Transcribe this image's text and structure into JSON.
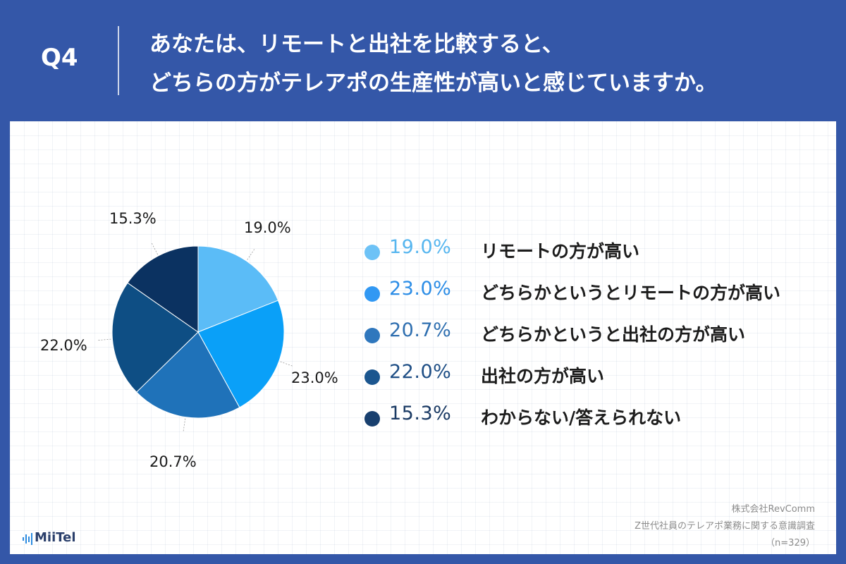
{
  "question": {
    "number": "Q4",
    "line1": "あなたは、リモートと出社を比較すると、",
    "line2": "どちらの方がテレアポの生産性が高いと感じていますか。"
  },
  "chart_data": {
    "type": "pie",
    "title": "あなたは、リモートと出社を比較すると、どちらの方がテレアポの生産性が高いと感じていますか。",
    "slices": [
      {
        "label": "リモートの方が高い",
        "value": 19.0,
        "display": "19.0%",
        "color": "#5bbcf7"
      },
      {
        "label": "どちらかというとリモートの方が高い",
        "value": 23.0,
        "display": "23.0%",
        "color": "#0aa0f8"
      },
      {
        "label": "どちらかというと出社の方が高い",
        "value": 20.7,
        "display": "20.7%",
        "color": "#1f72b9"
      },
      {
        "label": "出社の方が高い",
        "value": 22.0,
        "display": "22.0%",
        "color": "#0e4e84"
      },
      {
        "label": "わからない/答えられない",
        "value": 15.3,
        "display": "15.3%",
        "color": "#0b3261"
      }
    ]
  },
  "legend_colors": {
    "dots": [
      "#6dc2f6",
      "#3198f3",
      "#2f77bd",
      "#1b568f",
      "#183f6e"
    ],
    "pct": [
      "#57b6ef",
      "#2c8de6",
      "#2f6fb0",
      "#1e4e85",
      "#1a3a64"
    ]
  },
  "source": {
    "company": "株式会社RevComm",
    "survey": "Z世代社員のテレアポ業務に関する意識調査",
    "sample": "（n=329）"
  },
  "logo": {
    "text": "MiiTel",
    "icon": "sound-wave-icon"
  }
}
